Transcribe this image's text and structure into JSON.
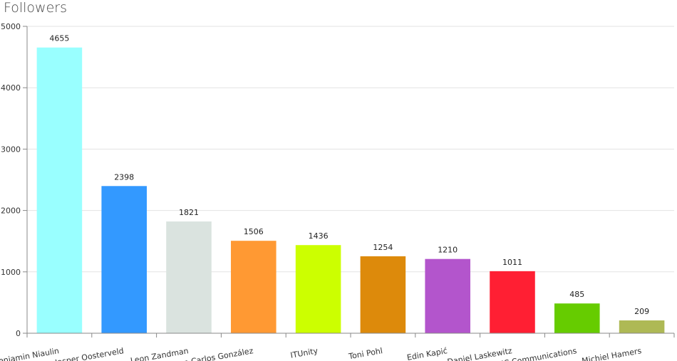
{
  "chart_data": {
    "type": "bar",
    "title": "Followers",
    "xlabel": "",
    "ylabel": "",
    "ylim": [
      0,
      5000
    ],
    "yticks": [
      0,
      1000,
      2000,
      3000,
      4000,
      5000
    ],
    "grid": true,
    "categories": [
      "Benjamin Niaulin",
      "Jasper Oosterveld",
      "Leon Zandman",
      "Juan Carlos González",
      "ITUnity",
      "Toni Pohl",
      "Edin Kapić",
      "Daniel Laskewitz",
      "NC Communications",
      "Michiel Hamers"
    ],
    "values": [
      4655,
      2398,
      1821,
      1506,
      1436,
      1254,
      1210,
      1011,
      485,
      209
    ],
    "colors": [
      "#99ffff",
      "#3399ff",
      "#dae3df",
      "#ff9933",
      "#ccff00",
      "#dd8a0b",
      "#b355cc",
      "#ff1f33",
      "#66cc00",
      "#aeb955"
    ]
  }
}
